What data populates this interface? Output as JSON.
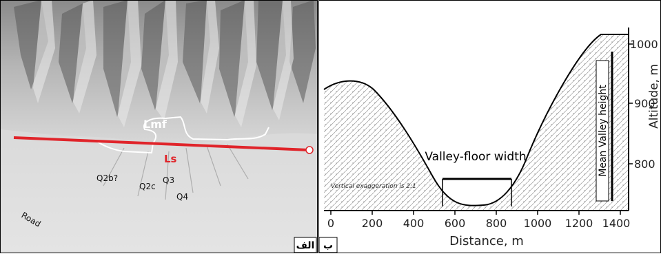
{
  "left_panel": {
    "label_lmf": "Lmf",
    "label_ls": "Ls",
    "unit_labels": [
      "Q2b?",
      "Q2c",
      "Q3",
      "Q4"
    ],
    "road_label": "Road",
    "panel_tag": "الف",
    "colors": {
      "ls_line": "#e0242a",
      "lmf_line": "#ffffff"
    }
  },
  "right_panel": {
    "panel_tag": "ب",
    "floor_label": "Valley-floor width",
    "height_label": "Mean Valley height",
    "exaggeration_note": "Vertical exaggeration is 2:1",
    "x_axis_title": "Distance, m",
    "y_axis_title": "Altitude, m",
    "x_ticks": [
      "0",
      "200",
      "400",
      "600",
      "800",
      "1000",
      "1200",
      "1400"
    ],
    "y_ticks": [
      "800",
      "900",
      "1000"
    ]
  }
}
